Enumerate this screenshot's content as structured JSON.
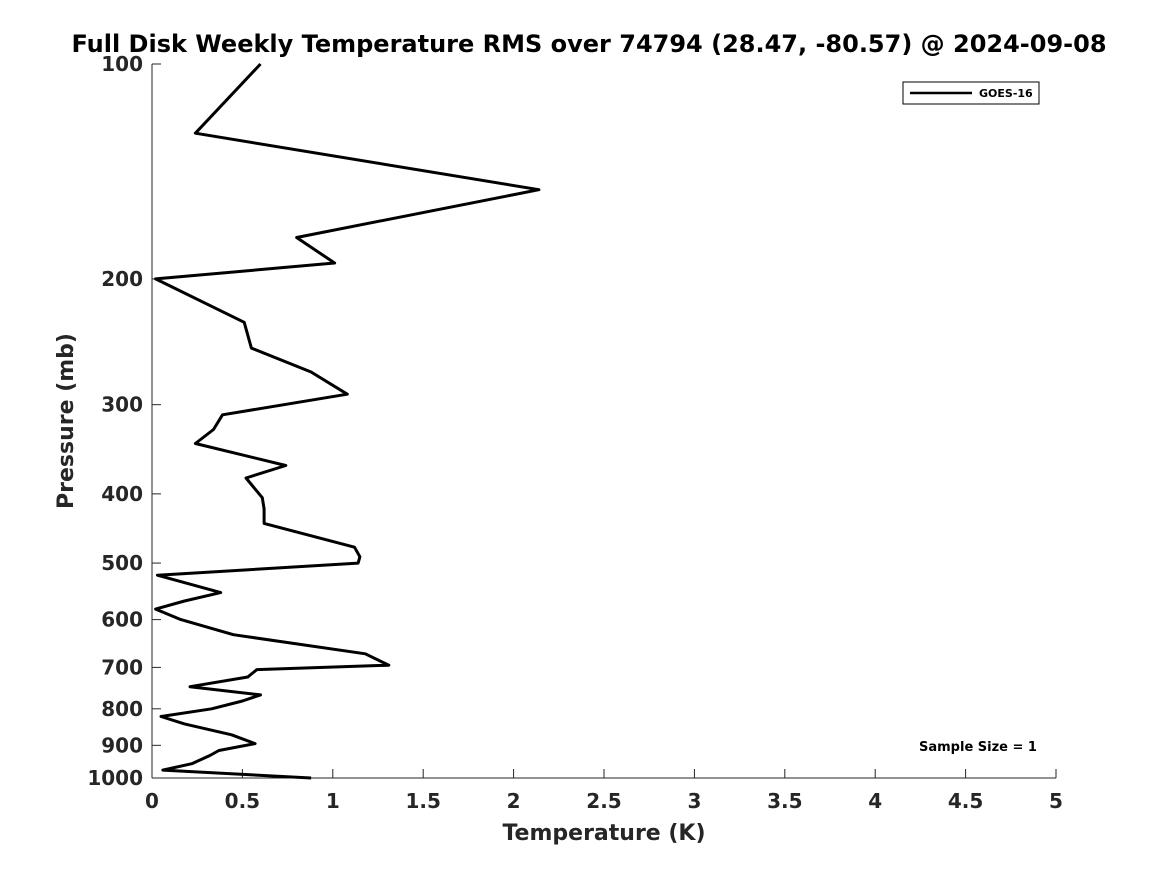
{
  "chart_data": {
    "type": "line",
    "title": "Full Disk Weekly Temperature RMS over 74794 (28.47, -80.57) @ 2024-09-08",
    "xlabel": "Temperature (K)",
    "ylabel": "Pressure (mb)",
    "xlim": [
      0,
      5
    ],
    "ylim": [
      100,
      1000
    ],
    "yscale": "log",
    "y_reversed": true,
    "x_ticks": [
      "0",
      "0.5",
      "1",
      "1.5",
      "2",
      "2.5",
      "3",
      "3.5",
      "4",
      "4.5",
      "5"
    ],
    "y_ticks": [
      "100",
      "200",
      "300",
      "400",
      "500",
      "600",
      "700",
      "800",
      "900",
      "1000"
    ],
    "grid": false,
    "legend_position": "top-right",
    "series": [
      {
        "name": "GOES-16",
        "color": "#000000",
        "x": [
          0.6,
          0.24,
          2.14,
          0.8,
          1.01,
          0.02,
          0.51,
          0.55,
          0.88,
          1.08,
          0.39,
          0.34,
          0.24,
          0.74,
          0.52,
          0.61,
          0.62,
          0.62,
          1.12,
          1.15,
          1.14,
          0.03,
          0.38,
          0.18,
          0.02,
          0.16,
          0.45,
          1.18,
          1.31,
          0.58,
          0.55,
          0.53,
          0.21,
          0.6,
          0.5,
          0.33,
          0.05,
          0.18,
          0.44,
          0.57,
          0.37,
          0.32,
          0.22,
          0.06,
          0.88
        ],
        "y": [
          100,
          125,
          150,
          175,
          190,
          200,
          230,
          250,
          270,
          290,
          310,
          325,
          340,
          365,
          380,
          405,
          420,
          440,
          475,
          490,
          500,
          520,
          550,
          565,
          580,
          600,
          630,
          670,
          695,
          705,
          715,
          722,
          745,
          765,
          780,
          800,
          820,
          840,
          870,
          895,
          915,
          930,
          955,
          975,
          1000
        ]
      }
    ],
    "annotation": "Sample Size = 1"
  }
}
